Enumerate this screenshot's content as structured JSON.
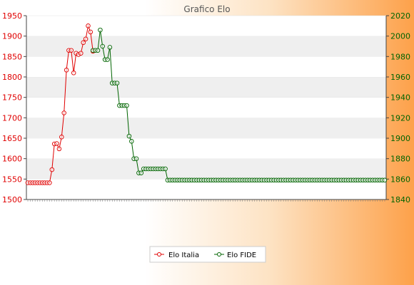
{
  "chart_data": {
    "type": "line",
    "title": "Grafico Elo",
    "left_axis": {
      "ylim": [
        1500,
        1950
      ],
      "ticks": [
        "1500",
        "1550",
        "1600",
        "1650",
        "1700",
        "1750",
        "1800",
        "1850",
        "1900",
        "1950"
      ],
      "color": "#e00000"
    },
    "right_axis": {
      "ylim": [
        1840,
        2020
      ],
      "ticks": [
        "1840",
        "1860",
        "1880",
        "1900",
        "1920",
        "1940",
        "1960",
        "1980",
        "2000",
        "2020"
      ],
      "color": "#006400"
    },
    "grid": true,
    "legend_position": "bottom",
    "series": [
      {
        "name": "Elo Italia",
        "axis": "left",
        "color": "#e00000",
        "x": [
          0,
          1,
          2,
          3,
          4,
          5,
          6,
          7,
          8,
          9,
          10,
          11,
          12,
          13,
          14,
          15,
          16,
          17,
          18,
          19,
          20,
          21,
          22,
          23,
          24,
          25,
          26,
          27
        ],
        "values": [
          1541,
          1541,
          1541,
          1541,
          1541,
          1541,
          1541,
          1541,
          1541,
          1541,
          1573,
          1636,
          1637,
          1624,
          1653,
          1712,
          1817,
          1865,
          1865,
          1810,
          1858,
          1855,
          1858,
          1884,
          1893,
          1925,
          1910,
          1863
        ]
      },
      {
        "name": "Elo FIDE",
        "axis": "right",
        "color": "#006400",
        "x": [
          27,
          28,
          29,
          30,
          31,
          32,
          33,
          34,
          35,
          36,
          37,
          38,
          39,
          40,
          41,
          42,
          43,
          44,
          45,
          46,
          47,
          48,
          49,
          50,
          51,
          52,
          53,
          54,
          55,
          56,
          57,
          58,
          59,
          60,
          61,
          62,
          63,
          64,
          65,
          66,
          67,
          68,
          69,
          70,
          71,
          72,
          73,
          74,
          75,
          76,
          77,
          78,
          79,
          80,
          81,
          82,
          83,
          84,
          85,
          86,
          87,
          88,
          89,
          90,
          91,
          92,
          93,
          94,
          95,
          96,
          97,
          98,
          99,
          100,
          101,
          102,
          103,
          104,
          105,
          106,
          107,
          108,
          109,
          110,
          111,
          112,
          113,
          114,
          115,
          116,
          117,
          118,
          119,
          120,
          121,
          122,
          123,
          124,
          125,
          126,
          127,
          128,
          129,
          130,
          131,
          132,
          133,
          134,
          135,
          136,
          137,
          138,
          139,
          140,
          141,
          142,
          143,
          144,
          145,
          146,
          147,
          148
        ],
        "values": [
          1986,
          1986,
          1986,
          2006,
          1990,
          1977,
          1977,
          1989,
          1954,
          1954,
          1954,
          1932,
          1932,
          1932,
          1932,
          1902,
          1897,
          1880,
          1880,
          1866,
          1866,
          1870,
          1870,
          1870,
          1870,
          1870,
          1870,
          1870,
          1870,
          1870,
          1870,
          1859,
          1859,
          1859,
          1859,
          1859,
          1859,
          1859,
          1859,
          1859,
          1859,
          1859,
          1859,
          1859,
          1859,
          1859,
          1859,
          1859,
          1859,
          1859,
          1859,
          1859,
          1859,
          1859,
          1859,
          1859,
          1859,
          1859,
          1859,
          1859,
          1859,
          1859,
          1859,
          1859,
          1859,
          1859,
          1859,
          1859,
          1859,
          1859,
          1859,
          1859,
          1859,
          1859,
          1859,
          1859,
          1859,
          1859,
          1859,
          1859,
          1859,
          1859,
          1859,
          1859,
          1859,
          1859,
          1859,
          1859,
          1859,
          1859,
          1859,
          1859,
          1859,
          1859,
          1859,
          1859,
          1859,
          1859,
          1859,
          1859,
          1859,
          1859,
          1859,
          1859,
          1859,
          1859,
          1859,
          1859,
          1859,
          1859,
          1859,
          1859,
          1859,
          1859,
          1859,
          1859,
          1859,
          1859,
          1859,
          1859,
          1859,
          1859
        ]
      }
    ]
  },
  "colors": {
    "band": "#efefef",
    "plot_bg": "#ffffff",
    "axis": "#444444"
  }
}
